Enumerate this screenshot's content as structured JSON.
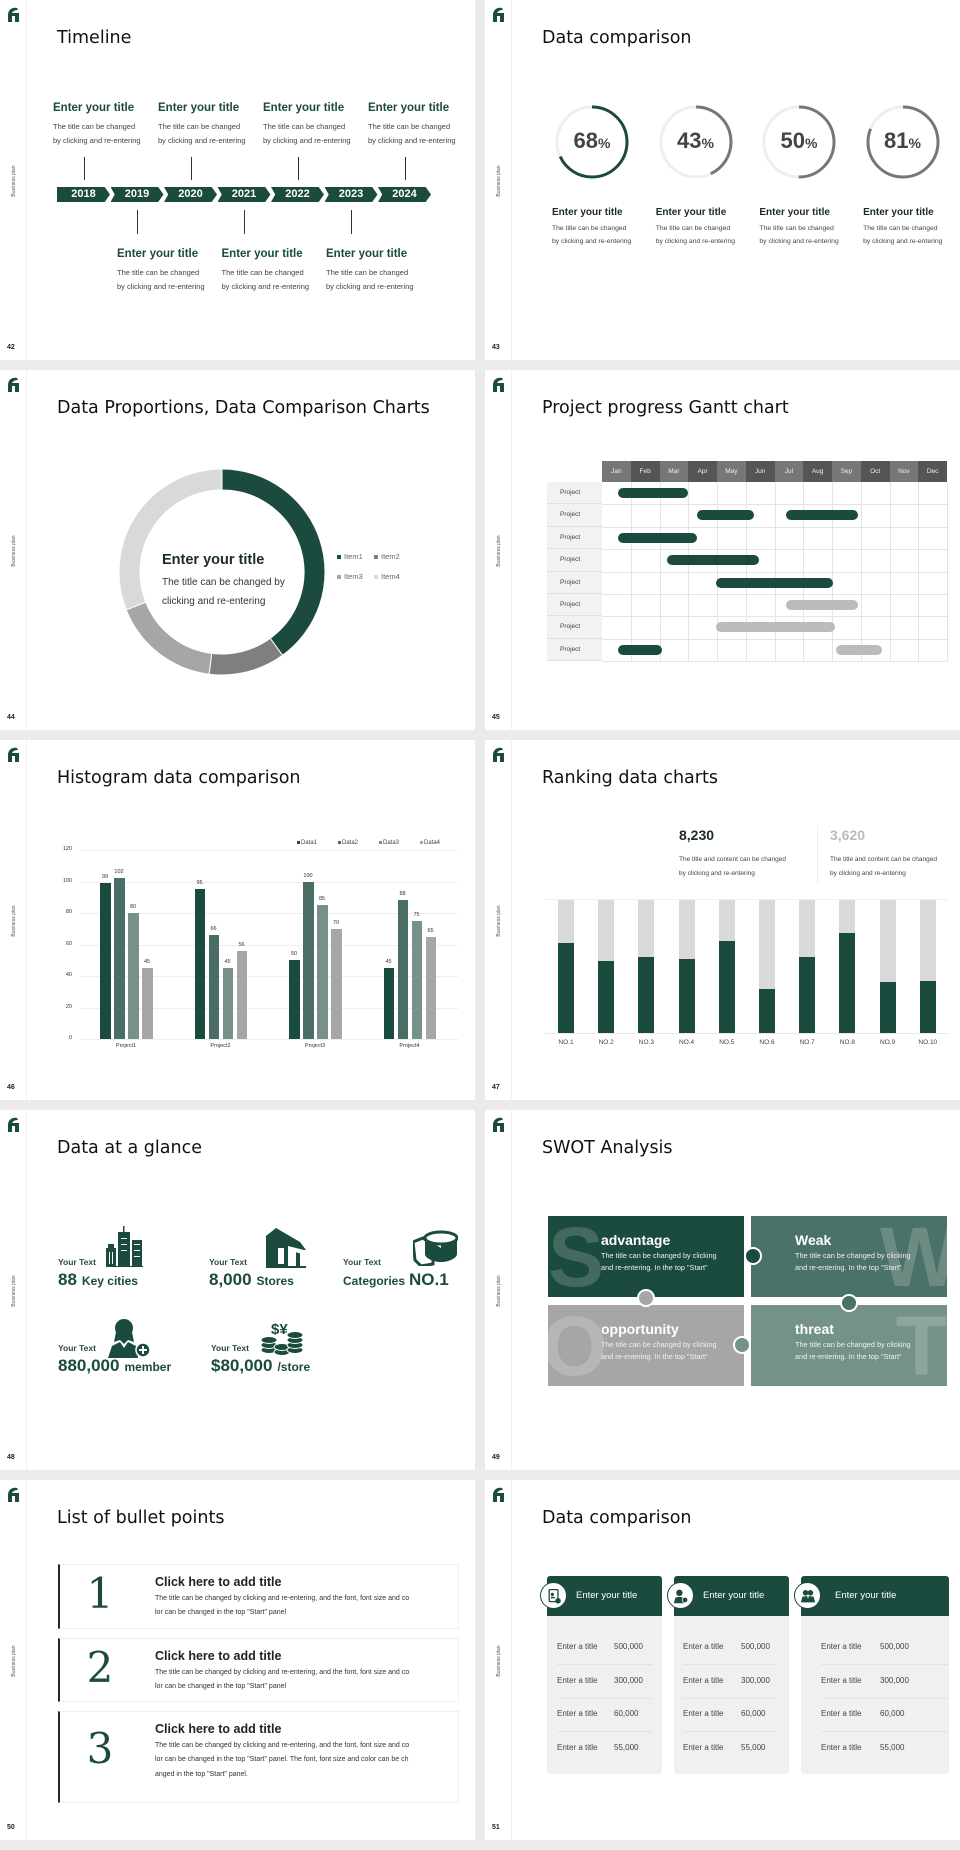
{
  "sidebar_label": "Business plan",
  "colors": {
    "brand": "#1b4a3e",
    "mid_green": "#4a6e65",
    "light_green": "#77918a",
    "gray": "#a6a6a6",
    "light_gray": "#d9d9d9"
  },
  "timeline": {
    "page": "42",
    "title": "Timeline",
    "years": [
      "2018",
      "2019",
      "2020",
      "2021",
      "2022",
      "2023",
      "2024"
    ],
    "top_items": [
      {
        "title": "Enter your title",
        "desc1": "The title can be changed",
        "desc2": "by clicking and re-entering"
      },
      {
        "title": "Enter your title",
        "desc1": "The title can be changed",
        "desc2": "by clicking and re-entering"
      },
      {
        "title": "Enter your title",
        "desc1": "The title can be changed",
        "desc2": "by clicking and re-entering"
      },
      {
        "title": "Enter your title",
        "desc1": "The title can be changed",
        "desc2": "by clicking and re-entering"
      }
    ],
    "bottom_items": [
      {
        "title": "Enter your title",
        "desc1": "The title can be changed",
        "desc2": "by clicking and re-entering"
      },
      {
        "title": "Enter your title",
        "desc1": "The title can be changed",
        "desc2": "by clicking and re-entering"
      },
      {
        "title": "Enter your title",
        "desc1": "The title can be changed",
        "desc2": "by clicking and re-entering"
      }
    ]
  },
  "rings": {
    "page": "43",
    "title": "Data comparison",
    "items": [
      {
        "value": 68,
        "number": "68",
        "unit": "%",
        "color": "#1b4a3e",
        "title": "Enter your title",
        "desc1": "The title can be changed",
        "desc2": "by clicking and re-entering"
      },
      {
        "value": 43,
        "number": "43",
        "unit": "%",
        "color": "#777777",
        "title": "Enter your title",
        "desc1": "The title can be changed",
        "desc2": "by clicking and re-entering"
      },
      {
        "value": 50,
        "number": "50",
        "unit": "%",
        "color": "#777777",
        "title": "Enter your title",
        "desc1": "The title can be changed",
        "desc2": "by clicking and re-entering"
      },
      {
        "value": 81,
        "number": "81",
        "unit": "%",
        "color": "#777777",
        "title": "Enter your title",
        "desc1": "The title can be changed",
        "desc2": "by clicking and re-entering"
      }
    ]
  },
  "donut": {
    "page": "44",
    "title": "Data Proportions, Data Comparison Charts",
    "center_title": "Enter your title",
    "center_desc1": "The title can be changed by",
    "center_desc2": "clicking and re-entering"
  },
  "gantt": {
    "page": "45",
    "title": "Project progress Gantt chart"
  },
  "histogram": {
    "page": "46",
    "title": "Histogram data comparison"
  },
  "ranking": {
    "page": "47",
    "title": "Ranking data charts",
    "stats": [
      {
        "value": "8,230",
        "desc1": "The title and content can be changed",
        "desc2": "by clicking and re-entering",
        "color": "#1b2b27"
      },
      {
        "value": "3,620",
        "desc1": "The title and content can be changed",
        "desc2": "by clicking and re-entering",
        "color": "#bbbbbb"
      }
    ]
  },
  "glance": {
    "page": "48",
    "title": "Data at a glance",
    "items": [
      {
        "label": "Your Text",
        "value": "88",
        "suffix": "Key cities",
        "icon": "buildings-icon"
      },
      {
        "label": "Your Text",
        "value": "8,000",
        "suffix": "Stores",
        "icon": "store-icon"
      },
      {
        "label": "Your Text",
        "prefix": "Categories",
        "value": "NO.1",
        "icon": "pie-chart-3d-icon"
      },
      {
        "label": "Your Text",
        "value": "880,000",
        "suffix": "member",
        "icon": "person-add-icon"
      },
      {
        "label": "Your Text",
        "value": "$80,000",
        "suffix": "/store",
        "icon": "coins-currency-icon"
      }
    ]
  },
  "swot": {
    "page": "49",
    "title": "SWOT Analysis",
    "items": [
      {
        "letter": "S",
        "title": "advantage",
        "desc1": "The title can be changed by clicking",
        "desc2": "and re-entering. In the top \"Start\"",
        "color": "#1b4a3e"
      },
      {
        "letter": "W",
        "title": "Weak",
        "desc1": "The title can be changed by clicking",
        "desc2": "and re-entering. In the top \"Start\"",
        "color": "#4b7268"
      },
      {
        "letter": "O",
        "title": "opportunity",
        "desc1": "The title can be changed by clicking",
        "desc2": "and re-entering. In the top \"Start\"",
        "color": "#a6a6a6"
      },
      {
        "letter": "T",
        "title": "threat",
        "desc1": "The title can be changed by clicking",
        "desc2": "and re-entering. In the top \"Start\"",
        "color": "#75928a"
      }
    ]
  },
  "bullets": {
    "page": "50",
    "title": "List of bullet points",
    "items": [
      {
        "number": "1",
        "title": "Click here to add title",
        "lines": [
          "The title can be changed by clicking and re-entering, and the font, font size and co",
          "lor can be changed in the top \"Start\" panel"
        ]
      },
      {
        "number": "2",
        "title": "Click here to add title",
        "lines": [
          "The title can be changed by clicking and re-entering, and the font, font size and co",
          "lor can be changed in the top \"Start\" panel"
        ]
      },
      {
        "number": "3",
        "title": "Click here to add title",
        "lines": [
          "The title can be changed by clicking and re-entering, and the font, font size and co",
          "lor can be changed in the top \"Start\" panel. The font, font size and color can be ch",
          "anged in the top \"Start\" panel."
        ]
      }
    ]
  },
  "tables": {
    "page": "51",
    "title": "Data comparison",
    "cards": [
      {
        "header": "Enter your title",
        "icon": "contact-card-icon",
        "rows": [
          {
            "label": "Enter a title",
            "value": "500,000"
          },
          {
            "label": "Enter a title",
            "value": "300,000"
          },
          {
            "label": "Enter a title",
            "value": "60,000"
          },
          {
            "label": "Enter a title",
            "value": "55,000"
          }
        ]
      },
      {
        "header": "Enter your title",
        "icon": "person-add-icon",
        "rows": [
          {
            "label": "Enter a title",
            "value": "500,000"
          },
          {
            "label": "Enter a title",
            "value": "300,000"
          },
          {
            "label": "Enter a title",
            "value": "60,000"
          },
          {
            "label": "Enter a title",
            "value": "55,000"
          }
        ]
      },
      {
        "header": "Enter your title",
        "icon": "group-icon",
        "rows": [
          {
            "label": "Enter a title",
            "value": "500,000"
          },
          {
            "label": "Enter a title",
            "value": "300,000"
          },
          {
            "label": "Enter a title",
            "value": "60,000"
          },
          {
            "label": "Enter a title",
            "value": "55,000"
          }
        ]
      }
    ]
  },
  "chart_data": [
    {
      "type": "pie",
      "variant": "donut",
      "categories": [
        "Item1",
        "Item2",
        "Item3",
        "Item4"
      ],
      "values": [
        40,
        12,
        17,
        31
      ],
      "colors": [
        "#1b4a3e",
        "#7f7f7f",
        "#a6a6a6",
        "#d9d9d9"
      ],
      "legend": "right"
    },
    {
      "type": "gantt",
      "months": [
        "Jan",
        "Feb",
        "Mar",
        "Apr",
        "May",
        "Jun",
        "Jul",
        "Aug",
        "Sep",
        "Oct",
        "Nov",
        "Dec"
      ],
      "rows": [
        {
          "label": "Project",
          "bars": [
            {
              "start": 0.55,
              "end": 3.0,
              "color": "#1b4a3e"
            }
          ]
        },
        {
          "label": "Project",
          "bars": [
            {
              "start": 3.3,
              "end": 5.3,
              "color": "#1b4a3e"
            },
            {
              "start": 6.4,
              "end": 8.9,
              "color": "#1b4a3e"
            }
          ]
        },
        {
          "label": "Project",
          "bars": [
            {
              "start": 0.55,
              "end": 3.3,
              "color": "#1b4a3e"
            }
          ]
        },
        {
          "label": "Project",
          "bars": [
            {
              "start": 2.25,
              "end": 5.45,
              "color": "#1b4a3e"
            }
          ]
        },
        {
          "label": "Project",
          "bars": [
            {
              "start": 3.95,
              "end": 8.05,
              "color": "#1b4a3e"
            }
          ]
        },
        {
          "label": "Project",
          "bars": [
            {
              "start": 6.4,
              "end": 8.9,
              "color": "#bbbbbb"
            }
          ]
        },
        {
          "label": "Project",
          "bars": [
            {
              "start": 3.95,
              "end": 8.1,
              "color": "#bbbbbb"
            }
          ]
        },
        {
          "label": "Project",
          "bars": [
            {
              "start": 0.55,
              "end": 2.1,
              "color": "#1b4a3e"
            },
            {
              "start": 8.15,
              "end": 9.75,
              "color": "#bbbbbb"
            }
          ]
        }
      ]
    },
    {
      "type": "bar",
      "categories": [
        "Project1",
        "Project2",
        "Project3",
        "Project4"
      ],
      "series": [
        {
          "name": "Data1",
          "values": [
            99,
            95,
            50,
            45
          ],
          "color": "#1b4a3e"
        },
        {
          "name": "Data2",
          "values": [
            102,
            66,
            100,
            88
          ],
          "color": "#4a6e65"
        },
        {
          "name": "Data3",
          "values": [
            80,
            45,
            85,
            75
          ],
          "color": "#77918a"
        },
        {
          "name": "Data4",
          "values": [
            45,
            56,
            70,
            65
          ],
          "color": "#a6a6a6"
        }
      ],
      "ylim": [
        0,
        120
      ],
      "yticks": [
        "0",
        "20",
        "40",
        "60",
        "80",
        "100",
        "120"
      ],
      "grid": true,
      "legend": "top-right",
      "data_labels": true
    },
    {
      "type": "bar",
      "variant": "stacked-percent",
      "categories": [
        "NO.1",
        "NO.2",
        "NO.3",
        "NO.4",
        "NO.5",
        "NO.6",
        "NO.7",
        "NO.8",
        "NO.9",
        "NO.10"
      ],
      "values": [
        68,
        54,
        57,
        56,
        69,
        33,
        57,
        75,
        38,
        39
      ],
      "ylim": [
        0,
        100
      ],
      "colors": [
        "#1b4a3e",
        "#d9d9d9"
      ]
    }
  ]
}
